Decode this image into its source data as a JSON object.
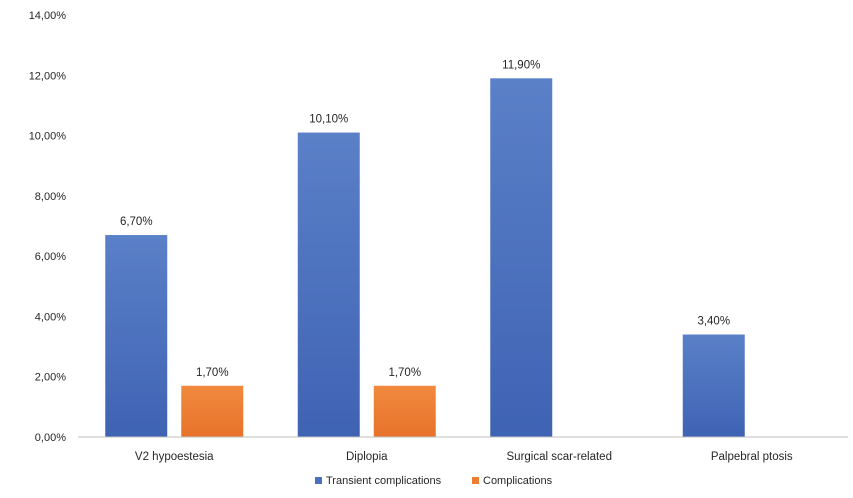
{
  "chart_data": {
    "type": "bar",
    "categories": [
      "V2 hypoestesia",
      "Diplopia",
      "Surgical scar-related",
      "Palpebral ptosis"
    ],
    "series": [
      {
        "name": "Transient complications",
        "values": [
          6.7,
          10.1,
          11.9,
          3.4
        ],
        "labels": [
          "6,70%",
          "10,10%",
          "11,90%",
          "3,40%"
        ],
        "color": "#4a6fbf"
      },
      {
        "name": "Complications",
        "values": [
          1.7,
          1.7,
          null,
          null
        ],
        "labels": [
          "1,70%",
          "1,70%",
          null,
          null
        ],
        "color": "#ed7d31"
      }
    ],
    "ylim": [
      0,
      14
    ],
    "yticks": [
      0,
      2,
      4,
      6,
      8,
      10,
      12,
      14
    ],
    "ytick_labels": [
      "0,00%",
      "2,00%",
      "4,00%",
      "6,00%",
      "8,00%",
      "10,00%",
      "12,00%",
      "14,00%"
    ],
    "grid": false,
    "legend": "bottom-center",
    "title": "",
    "xlabel": "",
    "ylabel": ""
  }
}
